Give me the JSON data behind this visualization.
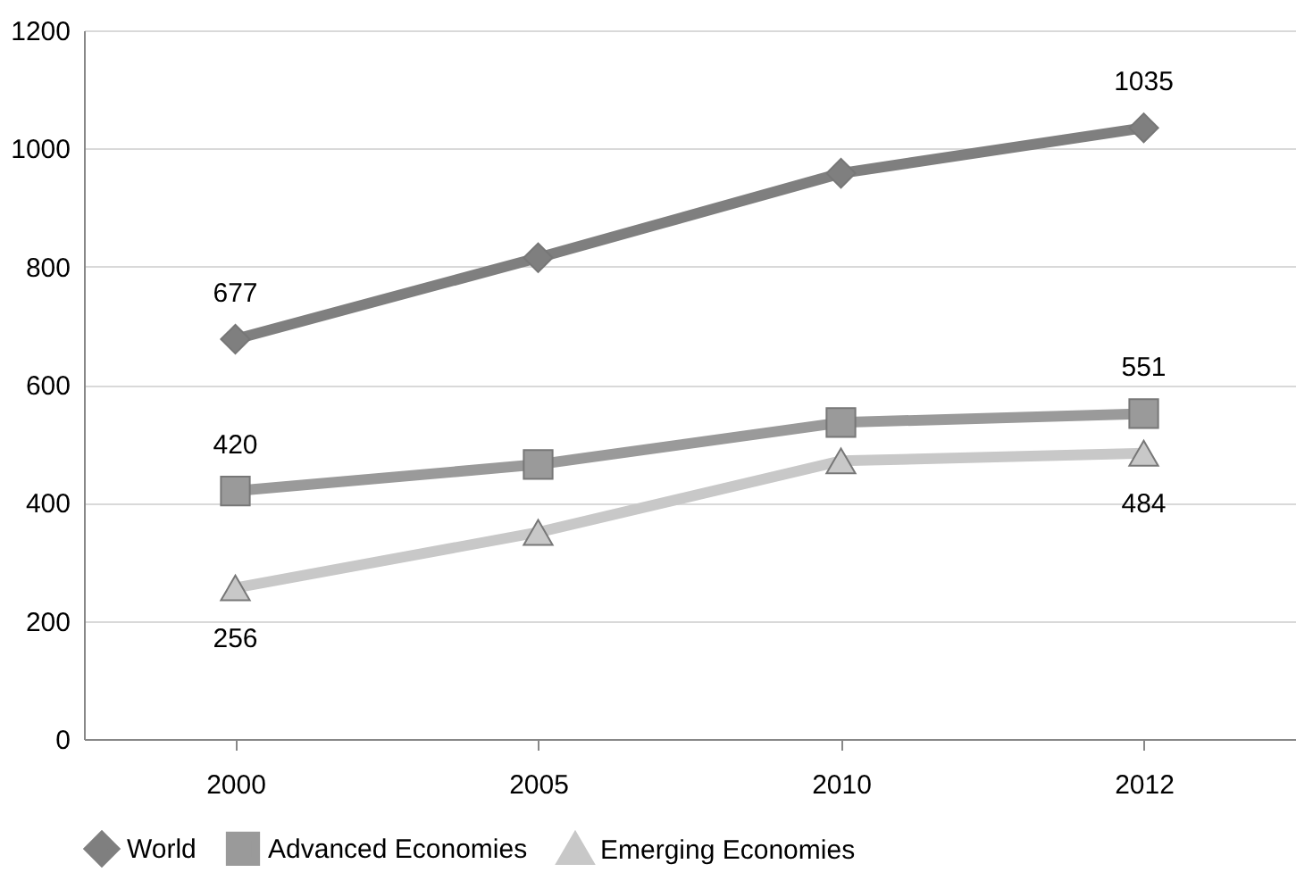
{
  "chart_data": {
    "type": "line",
    "categories": [
      "2000",
      "2005",
      "2010",
      "2012"
    ],
    "series": [
      {
        "name": "World",
        "color": "#7f7f7f",
        "marker": "diamond",
        "values": [
          677,
          815,
          958,
          1035
        ],
        "value_labels": [
          "677",
          null,
          null,
          "1035"
        ]
      },
      {
        "name": "Advanced Economies",
        "color": "#9a9a9a",
        "marker": "square",
        "values": [
          420,
          465,
          536,
          551
        ],
        "value_labels": [
          "420",
          null,
          null,
          "551"
        ]
      },
      {
        "name": "Emerging Economies",
        "color": "#c8c8c8",
        "marker": "triangle",
        "values": [
          256,
          350,
          471,
          484
        ],
        "value_labels": [
          "256",
          null,
          null,
          "484"
        ]
      }
    ],
    "ylim": [
      0,
      1200
    ],
    "yticks": [
      0,
      200,
      400,
      600,
      800,
      1000,
      1200
    ],
    "grid": "y",
    "legend": "bottom",
    "line_style": "solid"
  }
}
